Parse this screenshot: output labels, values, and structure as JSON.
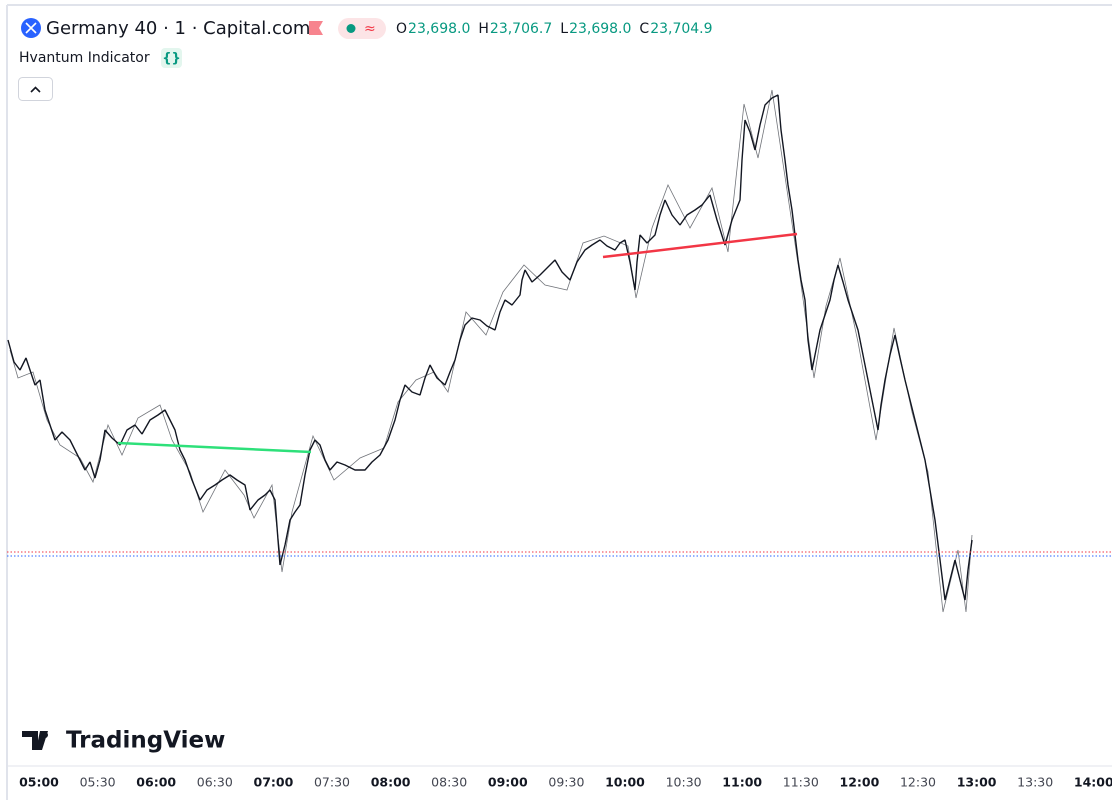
{
  "header": {
    "symbol": "Germany 40 · 1 · Capital.com",
    "ohlc": [
      {
        "key": "O",
        "value": "23,698.0"
      },
      {
        "key": "H",
        "value": "23,706.7"
      },
      {
        "key": "L",
        "value": "23,698.0"
      },
      {
        "key": "C",
        "value": "23,704.9"
      }
    ]
  },
  "indicator": {
    "name": "Hvantum Indicator",
    "badge": "{}"
  },
  "logo": "TradingView",
  "time_axis": {
    "labels": [
      "05:00",
      "05:30",
      "06:00",
      "06:30",
      "07:00",
      "07:30",
      "08:00",
      "08:30",
      "09:00",
      "09:30",
      "10:00",
      "10:30",
      "11:00",
      "11:30",
      "12:00",
      "12:30",
      "13:00",
      "13:30",
      "14:00"
    ]
  }
}
